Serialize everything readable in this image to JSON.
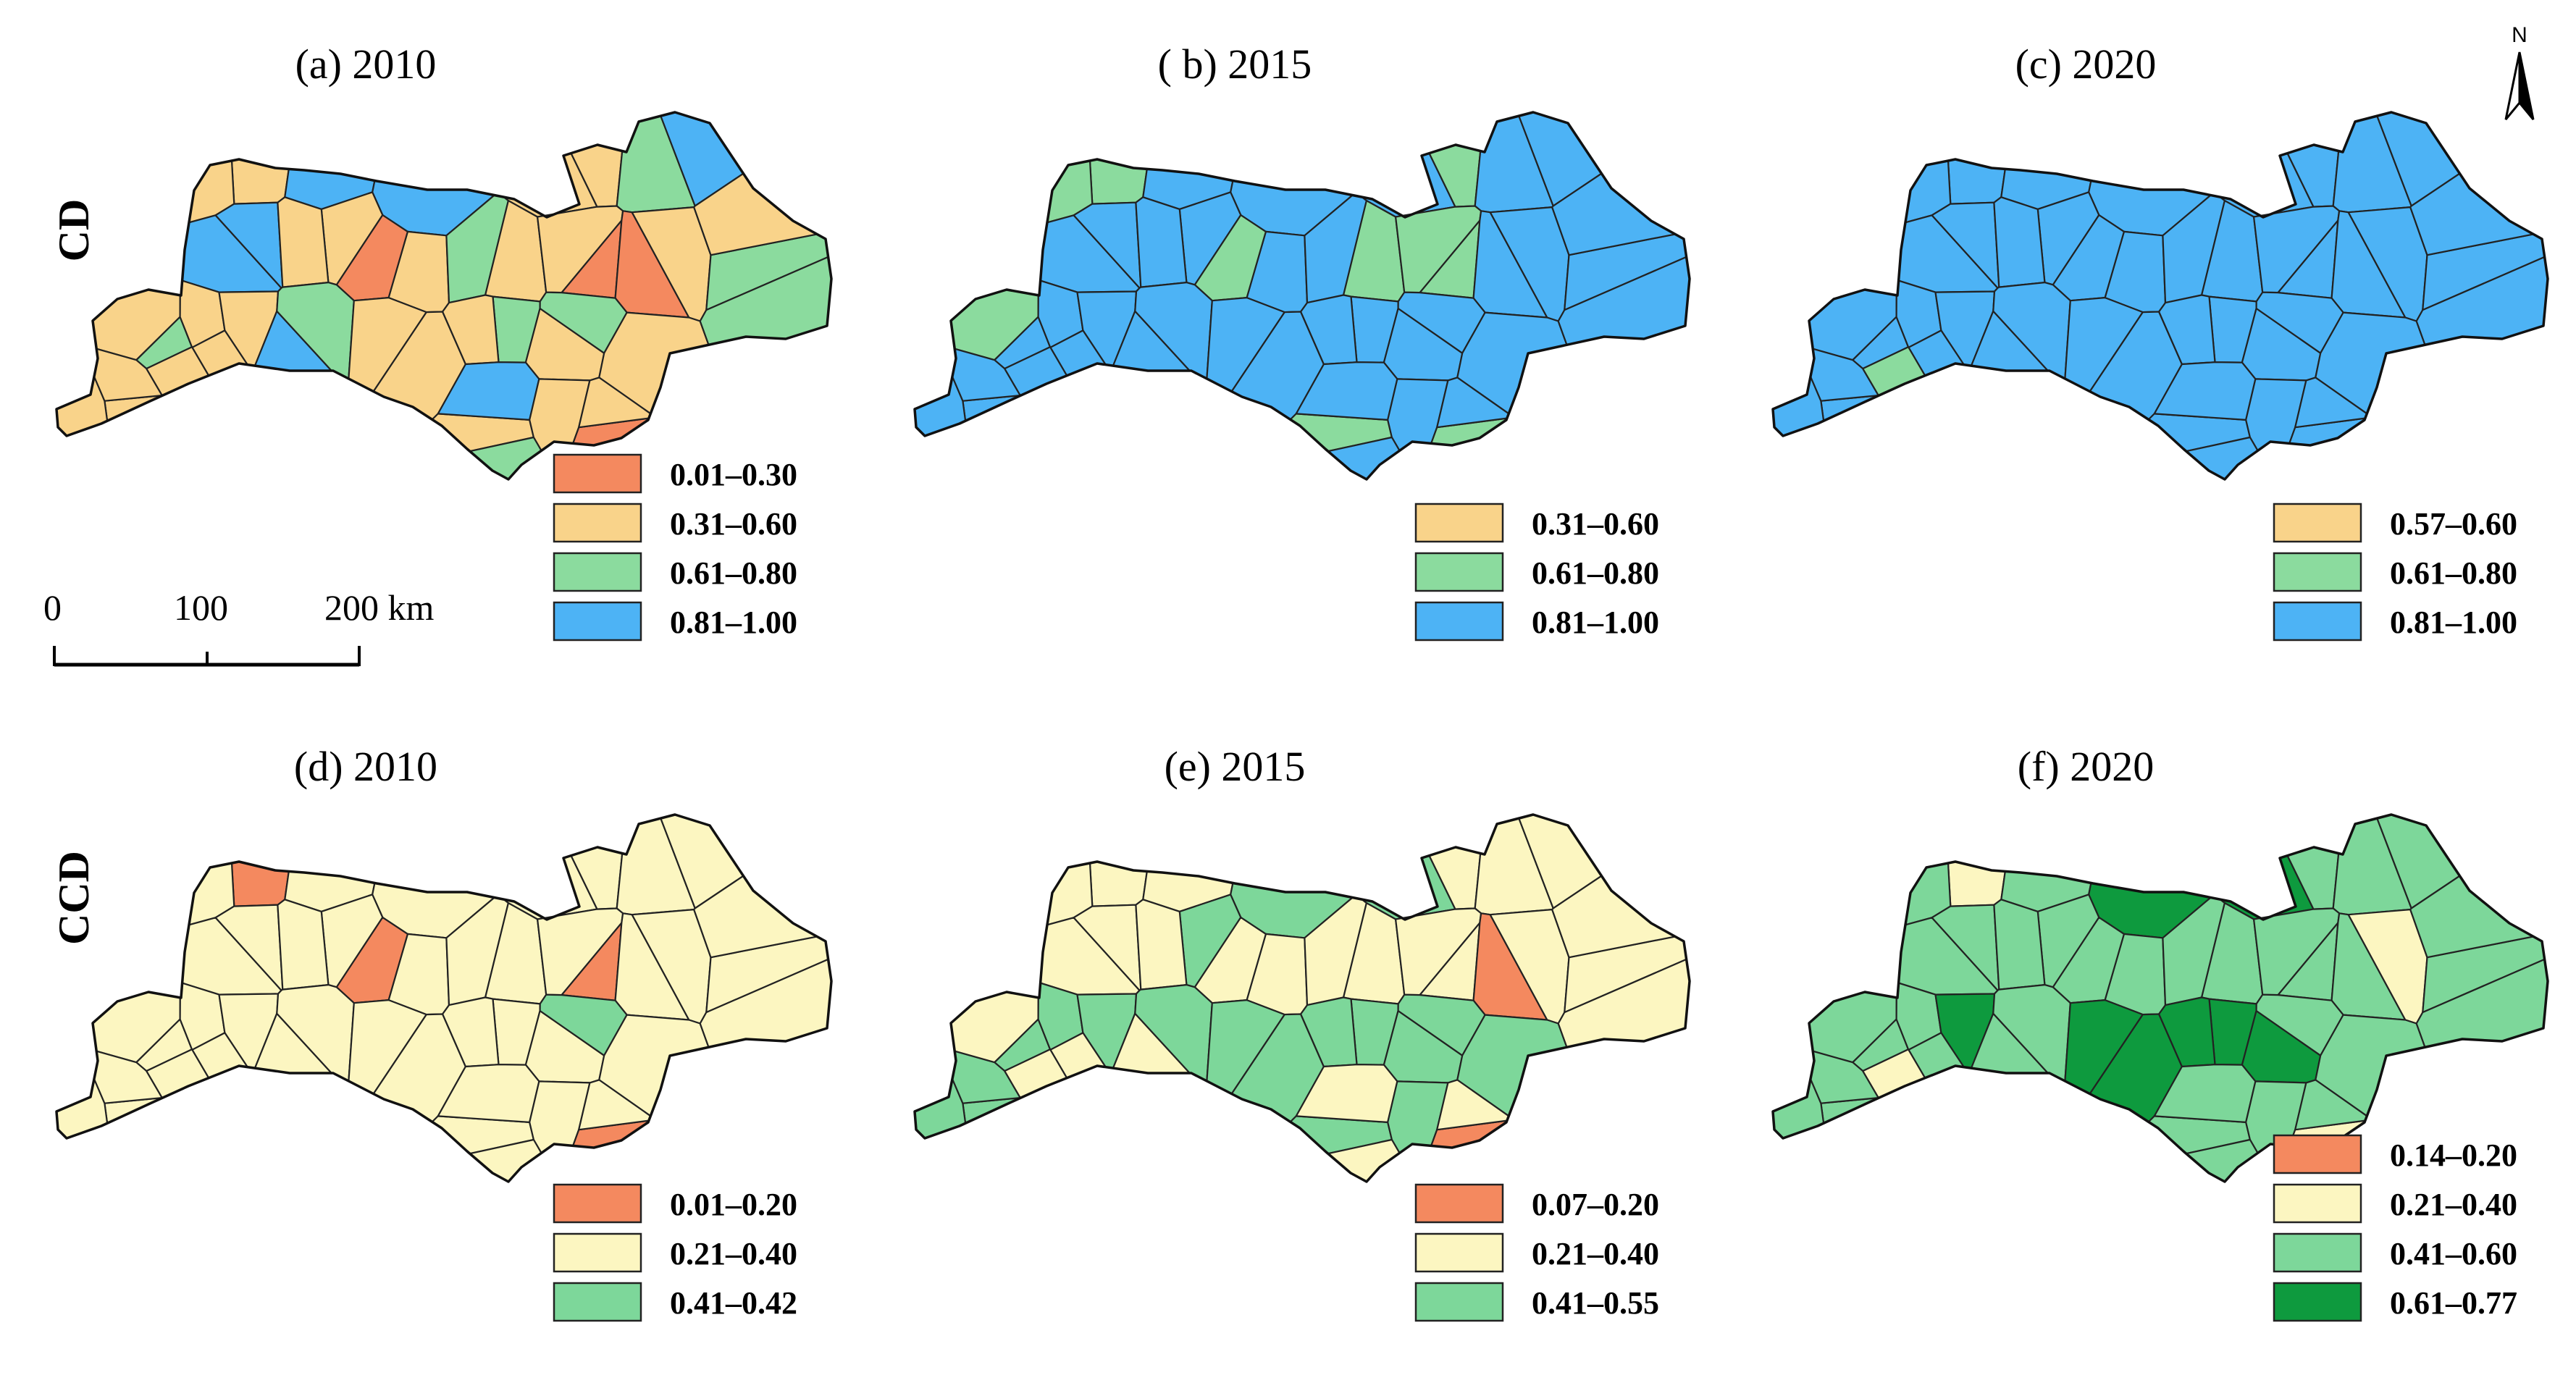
{
  "row_labels": [
    "CD",
    "CCD"
  ],
  "scale_bar": {
    "ticks": [
      "0",
      "100",
      "200 km"
    ]
  },
  "north_arrow": {
    "label": "N",
    "icon": "north-arrow-icon"
  },
  "panels": [
    {
      "id": "a",
      "title": "(a) 2010",
      "row": 0,
      "col": 0,
      "legend": [
        {
          "label": "0.01–0.30",
          "color": "#F4895F"
        },
        {
          "label": "0.31–0.60",
          "color": "#F9D38A"
        },
        {
          "label": "0.61–0.80",
          "color": "#8BDB9E"
        },
        {
          "label": "0.81–1.00",
          "color": "#4DB3F5"
        }
      ],
      "region_classes": [
        1,
        1,
        3,
        3,
        1,
        1,
        2,
        3,
        3,
        3,
        1,
        1,
        1,
        0,
        2,
        1,
        1,
        0,
        0,
        1,
        2,
        1,
        1,
        2,
        1,
        1,
        3,
        2,
        1,
        1,
        2,
        1,
        1,
        2,
        1,
        2,
        1,
        1,
        3,
        1,
        0,
        1,
        1,
        1,
        1,
        2,
        1,
        1
      ]
    },
    {
      "id": "b",
      "title": "( b) 2015",
      "row": 0,
      "col": 1,
      "legend": [
        {
          "label": "0.31–0.60",
          "color": "#F9D38A"
        },
        {
          "label": "0.61–0.80",
          "color": "#8BDB9E"
        },
        {
          "label": "0.81–1.00",
          "color": "#4DB3F5"
        }
      ],
      "region_classes": [
        1,
        1,
        3,
        3,
        2,
        1,
        2,
        3,
        3,
        3,
        2,
        2,
        2,
        1,
        2,
        1,
        1,
        1,
        3,
        2,
        2,
        2,
        1,
        2,
        2,
        2,
        3,
        2,
        2,
        2,
        2,
        2,
        3,
        2,
        2,
        2,
        2,
        1,
        3,
        2,
        1,
        2,
        2,
        2,
        3,
        2,
        2,
        2
      ]
    },
    {
      "id": "c",
      "title": "(c) 2020",
      "row": 0,
      "col": 2,
      "legend": [
        {
          "label": "0.57–0.60",
          "color": "#F9D38A"
        },
        {
          "label": "0.61–0.80",
          "color": "#8BDB9E"
        },
        {
          "label": "0.81–1.00",
          "color": "#4DB3F5"
        }
      ],
      "region_classes": [
        2,
        3,
        3,
        3,
        3,
        3,
        3,
        3,
        3,
        3,
        3,
        3,
        3,
        3,
        3,
        3,
        3,
        3,
        3,
        3,
        3,
        3,
        3,
        3,
        3,
        3,
        3,
        2,
        3,
        3,
        3,
        3,
        3,
        3,
        3,
        3,
        2,
        3,
        3,
        3,
        3,
        3,
        3,
        1,
        3,
        3,
        3,
        3
      ]
    },
    {
      "id": "d",
      "title": "(d) 2010",
      "row": 1,
      "col": 0,
      "legend": [
        {
          "label": "0.01–0.20",
          "color": "#F4895F"
        },
        {
          "label": "0.21–0.40",
          "color": "#FCF6C1"
        },
        {
          "label": "0.41–0.42",
          "color": "#7DD79A"
        }
      ],
      "region_classes": [
        0,
        1,
        1,
        1,
        1,
        1,
        1,
        1,
        1,
        1,
        1,
        1,
        1,
        0,
        1,
        1,
        1,
        0,
        1,
        1,
        1,
        1,
        1,
        1,
        1,
        1,
        1,
        1,
        1,
        1,
        1,
        1,
        1,
        2,
        1,
        1,
        1,
        1,
        1,
        1,
        0,
        1,
        1,
        1,
        1,
        1,
        1,
        0
      ]
    },
    {
      "id": "e",
      "title": "(e) 2015",
      "row": 1,
      "col": 1,
      "legend": [
        {
          "label": "0.07–0.20",
          "color": "#F4895F"
        },
        {
          "label": "0.21–0.40",
          "color": "#FCF6C1"
        },
        {
          "label": "0.41–0.55",
          "color": "#7DD79A"
        }
      ],
      "region_classes": [
        1,
        1,
        1,
        2,
        2,
        1,
        1,
        1,
        1,
        1,
        2,
        1,
        1,
        1,
        1,
        1,
        1,
        1,
        0,
        1,
        1,
        1,
        1,
        2,
        2,
        2,
        1,
        2,
        2,
        2,
        2,
        2,
        2,
        2,
        2,
        1,
        2,
        2,
        1,
        2,
        0,
        2,
        2,
        1,
        1,
        1,
        1,
        0
      ]
    },
    {
      "id": "f",
      "title": "(f) 2020",
      "row": 1,
      "col": 2,
      "legend": [
        {
          "label": "0.14–0.20",
          "color": "#F4895F"
        },
        {
          "label": "0.21–0.40",
          "color": "#FCF6C1"
        },
        {
          "label": "0.41–0.60",
          "color": "#7DD79A"
        },
        {
          "label": "0.61–0.77",
          "color": "#0E9A3E"
        }
      ],
      "region_classes": [
        1,
        2,
        2,
        3,
        3,
        2,
        2,
        2,
        2,
        2,
        2,
        2,
        2,
        2,
        2,
        2,
        2,
        2,
        2,
        1,
        2,
        2,
        2,
        2,
        2,
        3,
        2,
        2,
        3,
        3,
        3,
        3,
        3,
        2,
        2,
        2,
        2,
        2,
        2,
        2,
        1,
        2,
        2,
        1,
        2,
        2,
        2,
        1
      ]
    }
  ]
}
